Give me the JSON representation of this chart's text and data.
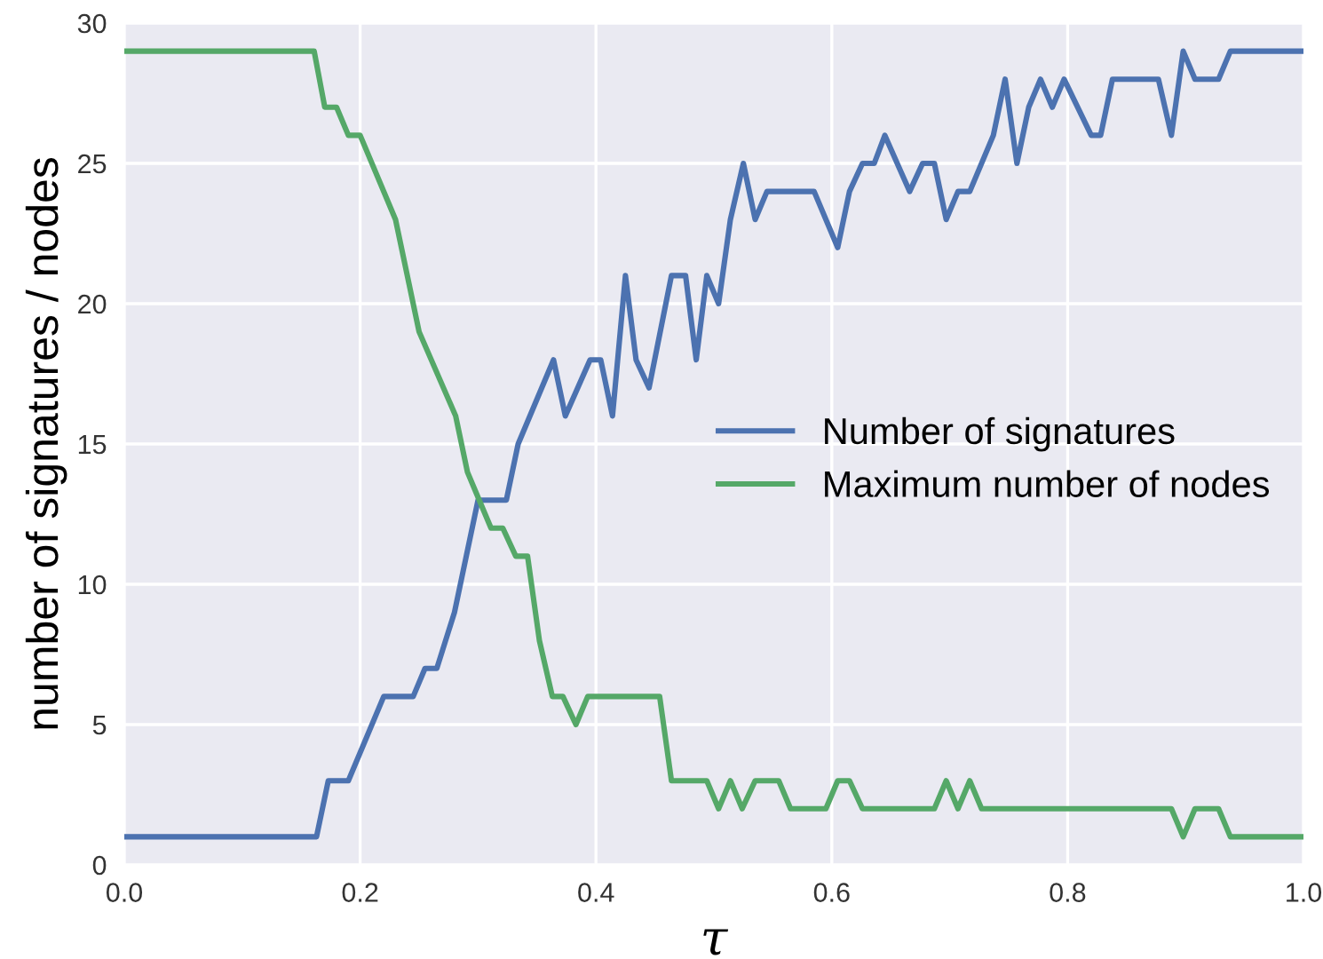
{
  "chart_data": {
    "type": "line",
    "xlabel": "τ",
    "ylabel": "number of signatures / nodes",
    "xlim": [
      0,
      1
    ],
    "ylim": [
      0,
      30
    ],
    "xticks": [
      {
        "value": 0,
        "label": "0.0"
      },
      {
        "value": 0.2,
        "label": "0.2"
      },
      {
        "value": 0.4,
        "label": "0.4"
      },
      {
        "value": 0.6,
        "label": "0.6"
      },
      {
        "value": 0.8,
        "label": "0.8"
      },
      {
        "value": 1,
        "label": "1.0"
      }
    ],
    "yticks": [
      0,
      5,
      10,
      15,
      20,
      25,
      30
    ],
    "grid": true,
    "legend": "right",
    "marker": "none",
    "line_style": "solid",
    "series": [
      {
        "name": "Number of signatures",
        "color": "#4c72b0",
        "x": [
          0,
          0.163,
          0.173,
          0.19,
          0.22,
          0.245,
          0.255,
          0.265,
          0.28,
          0.29,
          0.3,
          0.324,
          0.334,
          0.364,
          0.374,
          0.395,
          0.404,
          0.414,
          0.425,
          0.434,
          0.445,
          0.464,
          0.476,
          0.485,
          0.494,
          0.504,
          0.514,
          0.525,
          0.535,
          0.545,
          0.585,
          0.605,
          0.615,
          0.626,
          0.636,
          0.645,
          0.666,
          0.677,
          0.687,
          0.697,
          0.707,
          0.717,
          0.737,
          0.747,
          0.757,
          0.767,
          0.777,
          0.787,
          0.797,
          0.82,
          0.828,
          0.838,
          0.877,
          0.888,
          0.898,
          0.908,
          0.928,
          0.938,
          1.0
        ],
        "values": [
          1,
          1,
          3,
          3,
          6,
          6,
          7,
          7,
          9,
          11,
          13,
          13,
          15,
          18,
          16,
          18,
          18,
          16,
          21,
          18,
          17,
          21,
          21,
          18,
          21,
          20,
          23,
          25,
          23,
          24,
          24,
          22,
          24,
          25,
          25,
          26,
          24,
          25,
          25,
          23,
          24,
          24,
          26,
          28,
          25,
          27,
          28,
          27,
          28,
          26,
          26,
          28,
          28,
          26,
          29,
          28,
          28,
          29,
          29
        ]
      },
      {
        "name": "Maximum number of nodes",
        "color": "#55a868",
        "x": [
          0,
          0.161,
          0.17,
          0.18,
          0.19,
          0.2,
          0.23,
          0.25,
          0.281,
          0.291,
          0.301,
          0.311,
          0.321,
          0.332,
          0.342,
          0.352,
          0.363,
          0.372,
          0.383,
          0.393,
          0.454,
          0.464,
          0.494,
          0.504,
          0.514,
          0.524,
          0.535,
          0.555,
          0.565,
          0.595,
          0.605,
          0.615,
          0.626,
          0.687,
          0.697,
          0.707,
          0.717,
          0.727,
          0.888,
          0.898,
          0.908,
          0.928,
          0.938,
          1.0
        ],
        "values": [
          29,
          29,
          27,
          27,
          26,
          26,
          23,
          19,
          16,
          14,
          13,
          12,
          12,
          11,
          11,
          8,
          6,
          6,
          5,
          6,
          6,
          3,
          3,
          2,
          3,
          2,
          3,
          3,
          2,
          2,
          3,
          3,
          2,
          2,
          3,
          2,
          3,
          2,
          2,
          1,
          2,
          2,
          1,
          1
        ]
      }
    ]
  }
}
